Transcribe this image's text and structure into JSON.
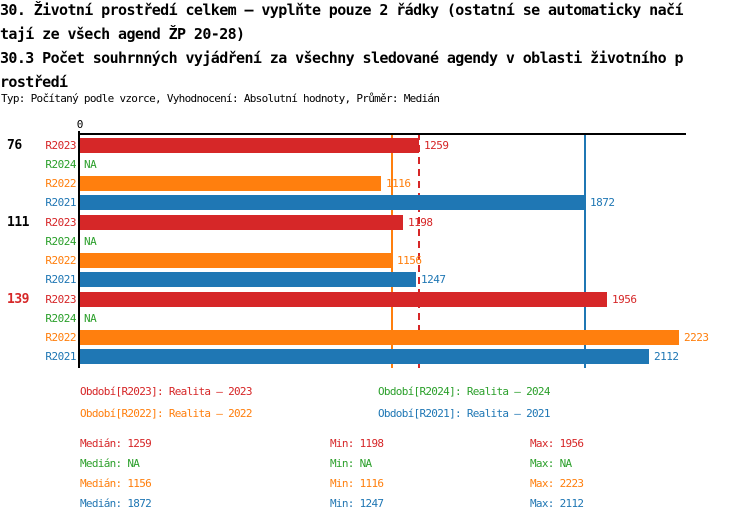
{
  "header": {
    "title_lines": [
      "30. Životní prostředí celkem – vyplňte pouze 2 řádky (ostatní se automaticky načí",
      "tají ze všech agend ŽP 20-28)",
      "30.3 Počet souhrnných vyjádření za všechny sledované agendy v oblasti životního p",
      "rostředí"
    ],
    "meta_line": "Typ: Počítaný podle vzorce, Vyhodnocení: Absolutní hodnoty, Průměr: Medián"
  },
  "chart_data": {
    "type": "bar",
    "orientation": "horizontal",
    "axis": {
      "origin_tick_label": "0",
      "xmin": 0,
      "xmax": 2245,
      "grid": false
    },
    "na_label": "NA",
    "row_order": [
      "R2023",
      "R2024",
      "R2022",
      "R2021"
    ],
    "series": [
      {
        "id": "R2023",
        "name": "Realita – 2023",
        "color": "#d62728",
        "legend_label": "Období[R2023]: Realita – 2023",
        "median": 1259,
        "min": 1198,
        "max": 1956,
        "median_display": "1259",
        "min_display": "1198",
        "max_display": "1956",
        "median_line": "dashed"
      },
      {
        "id": "R2024",
        "name": "Realita – 2024",
        "color": "#2ca02c",
        "legend_label": "Období[R2024]: Realita – 2024",
        "median": null,
        "min": null,
        "max": null,
        "median_display": "NA",
        "min_display": "NA",
        "max_display": "NA",
        "median_line": "none"
      },
      {
        "id": "R2022",
        "name": "Realita – 2022",
        "color": "#ff7f0e",
        "legend_label": "Období[R2022]: Realita – 2022",
        "median": 1156,
        "min": 1116,
        "max": 2223,
        "median_display": "1156",
        "min_display": "1116",
        "max_display": "2223",
        "median_line": "solid"
      },
      {
        "id": "R2021",
        "name": "Realita – 2021",
        "color": "#1f77b4",
        "legend_label": "Období[R2021]: Realita – 2021",
        "median": 1872,
        "min": 1247,
        "max": 2112,
        "median_display": "1872",
        "min_display": "1247",
        "max_display": "2112",
        "median_line": "solid"
      }
    ],
    "groups": [
      {
        "label": "76",
        "label_color": "#000000",
        "values": {
          "R2023": 1259,
          "R2024": null,
          "R2022": 1116,
          "R2021": 1872
        }
      },
      {
        "label": "111",
        "label_color": "#000000",
        "values": {
          "R2023": 1198,
          "R2024": null,
          "R2022": 1156,
          "R2021": 1247
        }
      },
      {
        "label": "139",
        "label_color": "#d62728",
        "values": {
          "R2023": 1956,
          "R2024": null,
          "R2022": 2223,
          "R2021": 2112
        }
      }
    ]
  },
  "stats": {
    "median_label": "Medián",
    "min_label": "Min",
    "max_label": "Max"
  }
}
